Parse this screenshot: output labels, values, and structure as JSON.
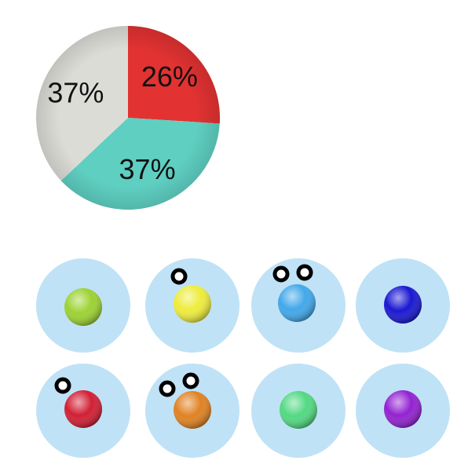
{
  "chart_data": {
    "type": "pie",
    "values": [
      26,
      37,
      37
    ],
    "value_labels": [
      "26%",
      "37%",
      "37%"
    ],
    "colors": [
      "#e23232",
      "#5fcfc2",
      "#dcdcd7"
    ]
  }
}
